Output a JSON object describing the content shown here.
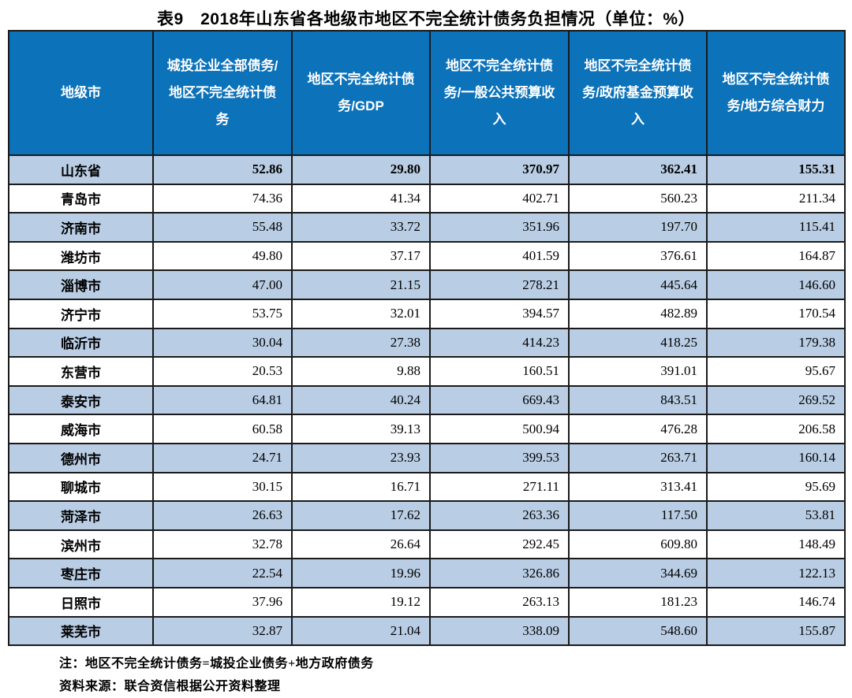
{
  "title": "表9　2018年山东省各地级市地区不完全统计债务负担情况（单位：%）",
  "table": {
    "columns": [
      "地级市",
      "城投企业全部债务/地区不完全统计债务",
      "地区不完全统计债务/GDP",
      "地区不完全统计债务/一般公共预算收入",
      "地区不完全统计债务/政府基金预算收入",
      "地区不完全统计债务/地方综合财力"
    ],
    "rows": [
      {
        "region": "山东省",
        "values": [
          "52.86",
          "29.80",
          "370.97",
          "362.41",
          "155.31"
        ],
        "bold": true
      },
      {
        "region": "青岛市",
        "values": [
          "74.36",
          "41.34",
          "402.71",
          "560.23",
          "211.34"
        ],
        "bold": false
      },
      {
        "region": "济南市",
        "values": [
          "55.48",
          "33.72",
          "351.96",
          "197.70",
          "115.41"
        ],
        "bold": false
      },
      {
        "region": "潍坊市",
        "values": [
          "49.80",
          "37.17",
          "401.59",
          "376.61",
          "164.87"
        ],
        "bold": false
      },
      {
        "region": "淄博市",
        "values": [
          "47.00",
          "21.15",
          "278.21",
          "445.64",
          "146.60"
        ],
        "bold": false
      },
      {
        "region": "济宁市",
        "values": [
          "53.75",
          "32.01",
          "394.57",
          "482.89",
          "170.54"
        ],
        "bold": false
      },
      {
        "region": "临沂市",
        "values": [
          "30.04",
          "27.38",
          "414.23",
          "418.25",
          "179.38"
        ],
        "bold": false
      },
      {
        "region": "东营市",
        "values": [
          "20.53",
          "9.88",
          "160.51",
          "391.01",
          "95.67"
        ],
        "bold": false
      },
      {
        "region": "泰安市",
        "values": [
          "64.81",
          "40.24",
          "669.43",
          "843.51",
          "269.52"
        ],
        "bold": false
      },
      {
        "region": "威海市",
        "values": [
          "60.58",
          "39.13",
          "500.94",
          "476.28",
          "206.58"
        ],
        "bold": false
      },
      {
        "region": "德州市",
        "values": [
          "24.71",
          "23.93",
          "399.53",
          "263.71",
          "160.14"
        ],
        "bold": false
      },
      {
        "region": "聊城市",
        "values": [
          "30.15",
          "16.71",
          "271.11",
          "313.41",
          "95.69"
        ],
        "bold": false
      },
      {
        "region": "菏泽市",
        "values": [
          "26.63",
          "17.62",
          "263.36",
          "117.50",
          "53.81"
        ],
        "bold": false
      },
      {
        "region": "滨州市",
        "values": [
          "32.78",
          "26.64",
          "292.45",
          "609.80",
          "148.49"
        ],
        "bold": false
      },
      {
        "region": "枣庄市",
        "values": [
          "22.54",
          "19.96",
          "326.86",
          "344.69",
          "122.13"
        ],
        "bold": false
      },
      {
        "region": "日照市",
        "values": [
          "37.96",
          "19.12",
          "263.13",
          "181.23",
          "146.74"
        ],
        "bold": false
      },
      {
        "region": "莱芜市",
        "values": [
          "32.87",
          "21.04",
          "338.09",
          "548.60",
          "155.87"
        ],
        "bold": false
      }
    ]
  },
  "notes": [
    "注：地区不完全统计债务=城投企业债务+地方政府债务",
    "资料来源：联合资信根据公开资料整理"
  ],
  "colors": {
    "header_bg": "#0c72ba",
    "header_text": "#ffffff",
    "band_bg": "#b9cde4",
    "border": "#1a1a1a"
  }
}
